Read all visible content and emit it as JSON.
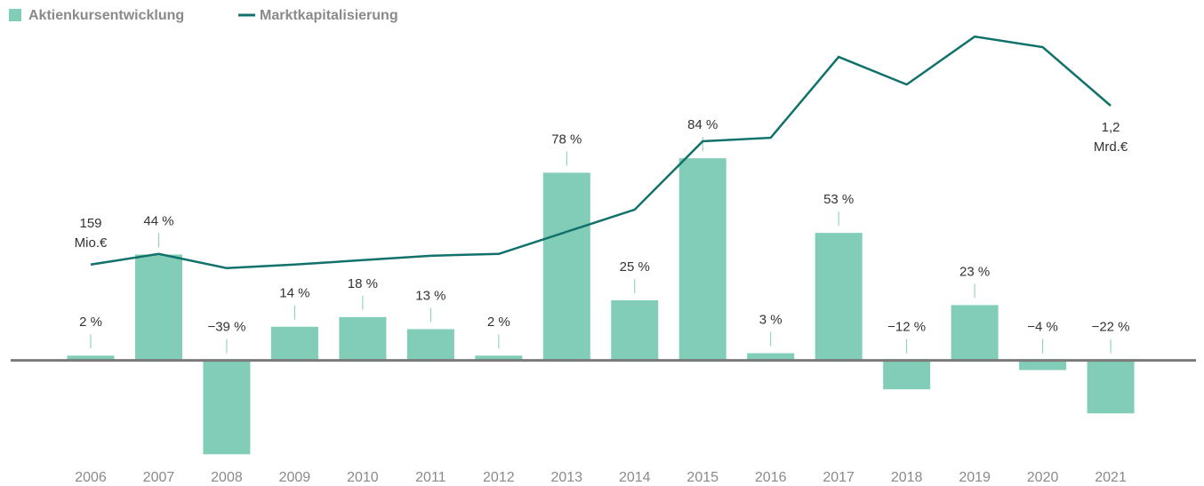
{
  "chart_data": {
    "type": "bar",
    "categories": [
      "2006",
      "2007",
      "2008",
      "2009",
      "2010",
      "2011",
      "2012",
      "2013",
      "2014",
      "2015",
      "2016",
      "2017",
      "2018",
      "2019",
      "2020",
      "2021"
    ],
    "ylim": [
      -40,
      135
    ],
    "y2lim": [
      -1100,
      1660
    ],
    "series": [
      {
        "name": "Aktienkursentwicklung",
        "type": "bar",
        "color": "#82cdb8",
        "values": [
          2,
          44,
          -39,
          14,
          18,
          13,
          2,
          78,
          25,
          84,
          3,
          53,
          -12,
          23,
          -4,
          -22
        ],
        "value_labels": [
          "2 %",
          "44 %",
          "−39 %",
          "14 %",
          "18 %",
          "13 %",
          "2 %",
          "78 %",
          "25 %",
          "84 %",
          "3 %",
          "53 %",
          "−12 %",
          "23 %",
          "−4 %",
          "−22 %"
        ]
      },
      {
        "name": "Marktkapitalisierung",
        "type": "line",
        "axis": "y2",
        "color": "#11716b",
        "values": [
          159,
          229,
          136,
          159,
          188,
          217,
          229,
          374,
          519,
          967,
          990,
          1520,
          1339,
          1653,
          1584,
          1200
        ],
        "value_labels": [
          "159\nMio.€",
          null,
          null,
          null,
          null,
          null,
          null,
          null,
          null,
          null,
          null,
          null,
          null,
          null,
          null,
          "1,2\nMrd.€"
        ]
      }
    ]
  }
}
